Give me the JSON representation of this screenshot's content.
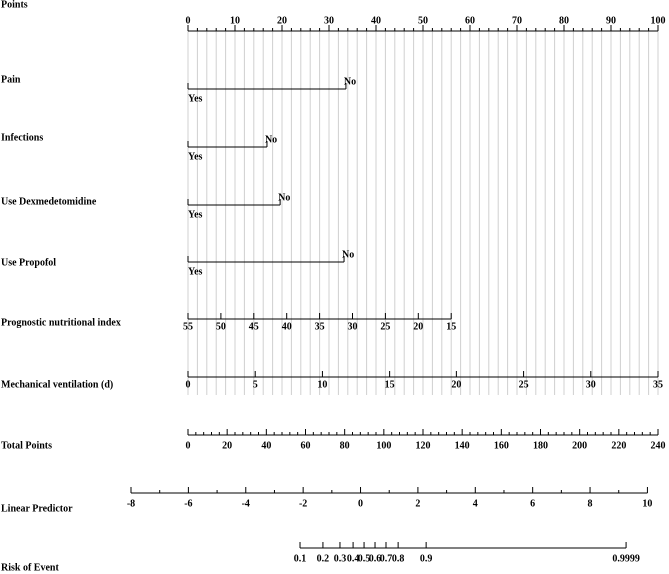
{
  "chart_data": {
    "type": "nomogram",
    "points_lim": [
      0,
      100
    ],
    "total_points_lim": [
      0,
      240
    ],
    "grid": true,
    "rows": [
      {
        "label": "Points",
        "kind": "points",
        "ticks": [
          0,
          10,
          20,
          30,
          40,
          50,
          60,
          70,
          80,
          90,
          100
        ],
        "minor_step": 2
      },
      {
        "label": "Pain",
        "kind": "binary",
        "levels": [
          "Yes",
          "No"
        ],
        "points": [
          0,
          33.6
        ]
      },
      {
        "label": "Infections",
        "kind": "binary",
        "levels": [
          "Yes",
          "No"
        ],
        "points": [
          0,
          16.8
        ]
      },
      {
        "label": "Use Dexmedetomidine",
        "kind": "binary",
        "levels": [
          "Yes",
          "No"
        ],
        "points": [
          0,
          19.6
        ]
      },
      {
        "label": "Use Propofol",
        "kind": "binary",
        "levels": [
          "Yes",
          "No"
        ],
        "points": [
          0,
          33.2
        ]
      },
      {
        "label": "Prognostic nutritional index",
        "kind": "scale",
        "ticks": [
          55,
          50,
          45,
          40,
          35,
          30,
          25,
          20,
          15
        ],
        "points": [
          0,
          7,
          14,
          21,
          28,
          35,
          42,
          49,
          56
        ]
      },
      {
        "label": "Mechanical ventilation (d)",
        "kind": "scale",
        "ticks": [
          0,
          5,
          10,
          15,
          20,
          25,
          30,
          35
        ],
        "points": [
          0,
          14.3,
          28.6,
          42.9,
          57.1,
          71.4,
          85.7,
          100
        ]
      },
      {
        "label": "Total Points",
        "kind": "total",
        "ticks": [
          0,
          20,
          40,
          60,
          80,
          100,
          120,
          140,
          160,
          180,
          200,
          220,
          240
        ],
        "minor_step": 4
      },
      {
        "label": "Linear Predictor",
        "kind": "outcome",
        "ticks": [
          -8,
          -6,
          -4,
          -2,
          0,
          2,
          4,
          6,
          8,
          10
        ],
        "total_points": [
          -29.1,
          0.2,
          29.5,
          58.8,
          88.1,
          117.4,
          146.7,
          176.0,
          205.3,
          234.6
        ],
        "minor_step": 1
      },
      {
        "label": "Risk of Event",
        "kind": "outcome",
        "ticks": [
          0.1,
          0.2,
          0.3,
          0.4,
          0.5,
          0.6,
          0.7,
          0.8,
          0.9,
          0.9999
        ],
        "total_points": [
          57.2,
          68.9,
          77.6,
          84.3,
          89.9,
          95.5,
          101.1,
          107.3,
          121.6,
          223.7
        ]
      }
    ]
  }
}
